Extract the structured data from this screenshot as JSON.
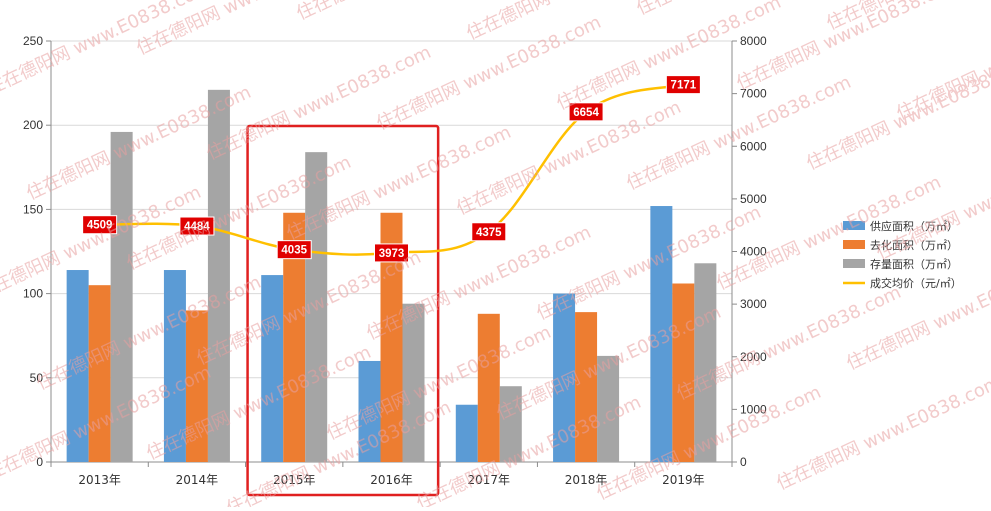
{
  "chart_data": {
    "type": "bar",
    "categories": [
      "2013年",
      "2014年",
      "2015年",
      "2016年",
      "2017年",
      "2018年",
      "2019年"
    ],
    "series": [
      {
        "name": "供应面积（万㎡）",
        "kind": "bar",
        "axis": "left",
        "color": "#5B9BD5",
        "values": [
          114,
          114,
          111,
          60,
          34,
          100,
          152
        ]
      },
      {
        "name": "去化面积（万㎡）",
        "kind": "bar",
        "axis": "left",
        "color": "#ED7D31",
        "values": [
          105,
          90,
          148,
          148,
          88,
          89,
          106
        ]
      },
      {
        "name": "存量面积（万㎡）",
        "kind": "bar",
        "axis": "left",
        "color": "#A5A5A5",
        "values": [
          196,
          221,
          184,
          94,
          45,
          63,
          118
        ]
      },
      {
        "name": "成交均价（元/㎡）",
        "kind": "line",
        "axis": "right",
        "color": "#FFC000",
        "values": [
          4509,
          4484,
          4035,
          3973,
          4375,
          6654,
          7171
        ],
        "labels": [
          "4509",
          "4484",
          "4035",
          "3973",
          "4375",
          "6654",
          "7171"
        ]
      }
    ],
    "y_left": {
      "range": [
        0,
        250
      ],
      "ticks": [
        "0",
        "50",
        "100",
        "150",
        "200",
        "250"
      ]
    },
    "y_right": {
      "range": [
        0,
        8000
      ],
      "ticks": [
        "0",
        "1000",
        "2000",
        "3000",
        "4000",
        "5000",
        "6000",
        "7000",
        "8000"
      ]
    },
    "grid": true,
    "legend_position": "right",
    "highlight": {
      "from_category": "2015年",
      "to_category": "2016年",
      "color": "#E02020"
    },
    "data_label_style": {
      "background": "#E00000",
      "text_color": "#FFFFFF"
    }
  },
  "watermark": {
    "text": "住在德阳网 www.E0838.com",
    "color": "#E8A0A0"
  }
}
